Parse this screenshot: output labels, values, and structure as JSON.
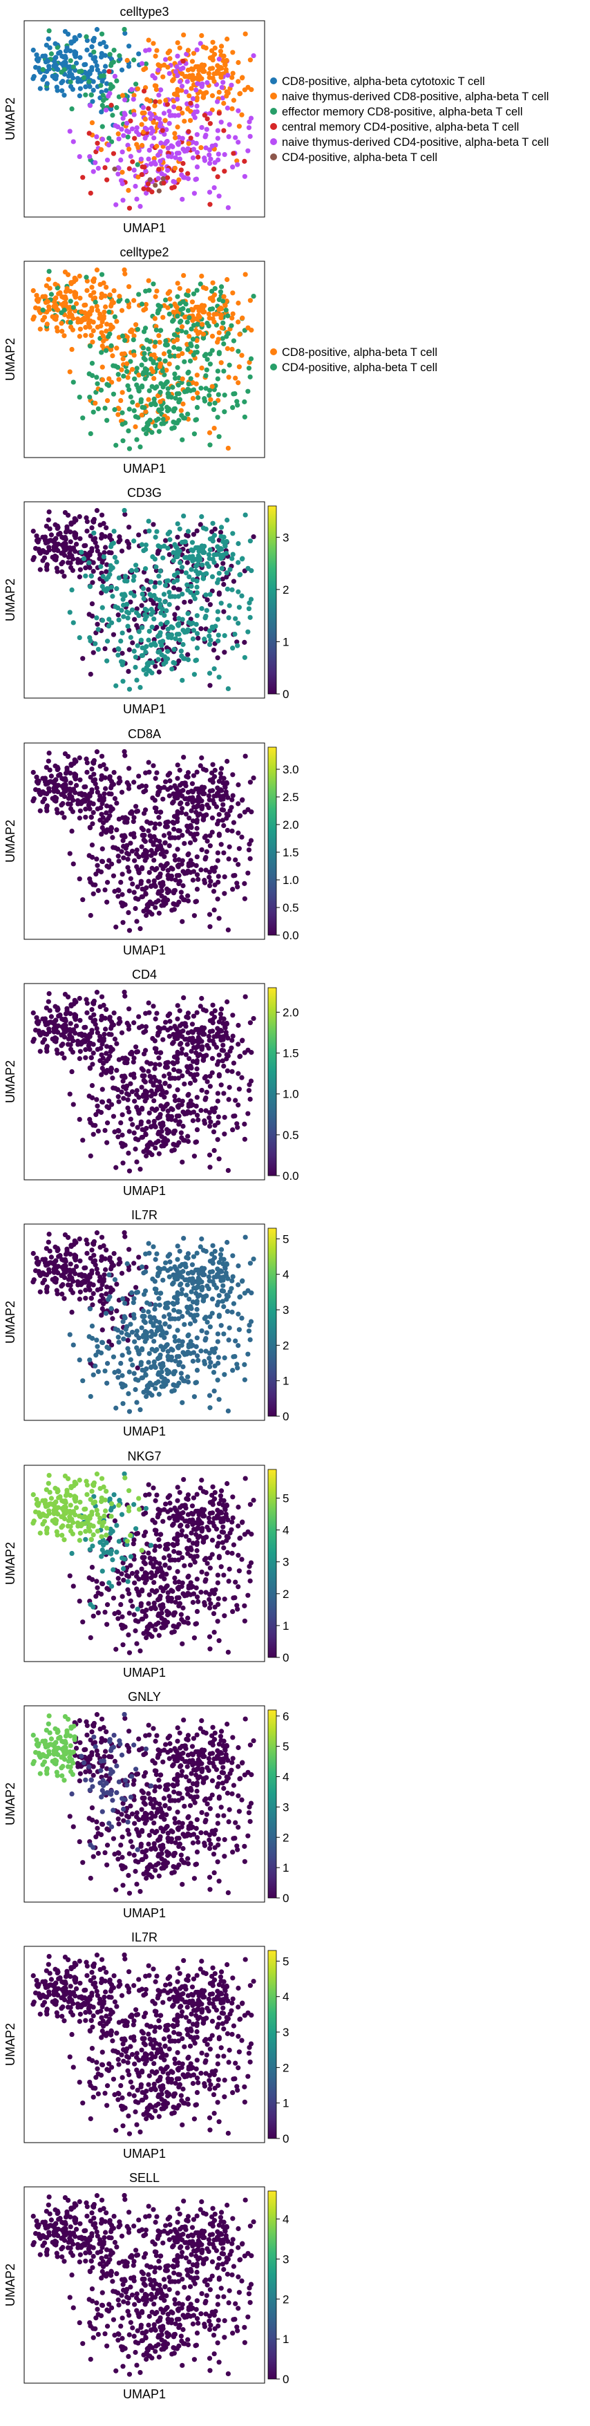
{
  "chart_data": [
    {
      "type": "scatter",
      "kind": "categorical",
      "title": "celltype3",
      "xlabel": "UMAP1",
      "ylabel": "UMAP2",
      "legend_position": "right",
      "legend": [
        {
          "name": "CD8-positive, alpha-beta cytotoxic T cell",
          "color": "#1f77b4"
        },
        {
          "name": "naive thymus-derived CD8-positive, alpha-beta T cell",
          "color": "#ff7f0e"
        },
        {
          "name": "effector memory CD8-positive, alpha-beta T cell",
          "color": "#279e68"
        },
        {
          "name": "central memory CD4-positive, alpha-beta T cell",
          "color": "#d62728"
        },
        {
          "name": "naive thymus-derived CD4-positive, alpha-beta T cell",
          "color": "#b84ef6"
        },
        {
          "name": "CD4-positive, alpha-beta T cell",
          "color": "#8c564b"
        }
      ]
    },
    {
      "type": "scatter",
      "kind": "categorical",
      "title": "celltype2",
      "xlabel": "UMAP1",
      "ylabel": "UMAP2",
      "legend_position": "right",
      "legend": [
        {
          "name": "CD8-positive, alpha-beta T cell",
          "color": "#ff7f0e"
        },
        {
          "name": "CD4-positive, alpha-beta T cell",
          "color": "#279e68"
        }
      ]
    },
    {
      "type": "scatter",
      "kind": "continuous",
      "title": "CD3G",
      "xlabel": "UMAP1",
      "ylabel": "UMAP2",
      "colormap": "viridis",
      "vmin": 0,
      "vmax": 3.6,
      "ticks": [
        "0",
        "1",
        "2",
        "3"
      ]
    },
    {
      "type": "scatter",
      "kind": "continuous",
      "title": "CD8A",
      "xlabel": "UMAP1",
      "ylabel": "UMAP2",
      "colormap": "viridis",
      "vmin": 0,
      "vmax": 3.4,
      "ticks": [
        "0.0",
        "0.5",
        "1.0",
        "1.5",
        "2.0",
        "2.5",
        "3.0"
      ]
    },
    {
      "type": "scatter",
      "kind": "continuous",
      "title": "CD4",
      "xlabel": "UMAP1",
      "ylabel": "UMAP2",
      "colormap": "viridis",
      "vmin": 0,
      "vmax": 2.3,
      "ticks": [
        "0.0",
        "0.5",
        "1.0",
        "1.5",
        "2.0"
      ]
    },
    {
      "type": "scatter",
      "kind": "continuous",
      "title": "IL7R",
      "xlabel": "UMAP1",
      "ylabel": "UMAP2",
      "colormap": "viridis",
      "vmin": 0,
      "vmax": 5.3,
      "ticks": [
        "0",
        "1",
        "2",
        "3",
        "4",
        "5"
      ]
    },
    {
      "type": "scatter",
      "kind": "continuous",
      "title": "NKG7",
      "xlabel": "UMAP1",
      "ylabel": "UMAP2",
      "colormap": "viridis",
      "vmin": 0,
      "vmax": 5.9,
      "ticks": [
        "0",
        "1",
        "2",
        "3",
        "4",
        "5"
      ]
    },
    {
      "type": "scatter",
      "kind": "continuous",
      "title": "GNLY",
      "xlabel": "UMAP1",
      "ylabel": "UMAP2",
      "colormap": "viridis",
      "vmin": 0,
      "vmax": 6.2,
      "ticks": [
        "0",
        "1",
        "2",
        "3",
        "4",
        "5",
        "6"
      ]
    },
    {
      "type": "scatter",
      "kind": "continuous",
      "title": "IL7R",
      "xlabel": "UMAP1",
      "ylabel": "UMAP2",
      "colormap": "viridis",
      "vmin": 0,
      "vmax": 5.3,
      "ticks": [
        "0",
        "1",
        "2",
        "3",
        "4",
        "5"
      ]
    },
    {
      "type": "scatter",
      "kind": "continuous",
      "title": "SELL",
      "xlabel": "UMAP1",
      "ylabel": "UMAP2",
      "colormap": "viridis",
      "vmin": 0,
      "vmax": 4.7,
      "ticks": [
        "0",
        "1",
        "2",
        "3",
        "4"
      ]
    }
  ]
}
